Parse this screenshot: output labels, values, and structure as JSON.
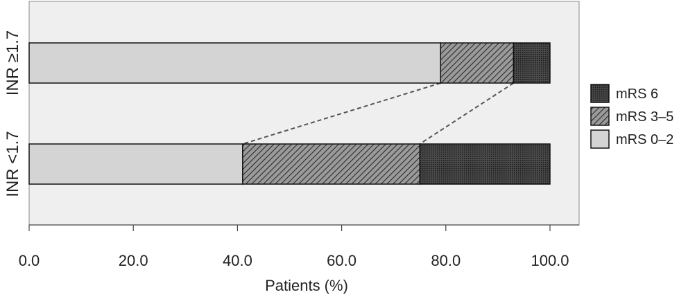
{
  "chart_data": {
    "type": "bar",
    "orientation": "horizontal",
    "stacked": true,
    "categories": [
      "INR ≥1.7",
      "INR <1.7"
    ],
    "series": [
      {
        "name": "mRS 0–2",
        "values": [
          79,
          41
        ],
        "color": "#d4d4d4",
        "pattern": "solid"
      },
      {
        "name": "mRS 3–5",
        "values": [
          14,
          34
        ],
        "color": "#8a8a8a",
        "pattern": "diagonal-hatch"
      },
      {
        "name": "mRS 6",
        "values": [
          7,
          25
        ],
        "color": "#3a3a3a",
        "pattern": "dense-dots"
      }
    ],
    "xlabel": "Patients (%)",
    "xlim": [
      0,
      100
    ],
    "xticks": [
      "0.0",
      "20.0",
      "40.0",
      "60.0",
      "80.0",
      "100.0"
    ],
    "legend": {
      "position": "right",
      "order": [
        "mRS 6",
        "mRS 3–5",
        "mRS 0–2"
      ]
    },
    "connectors": "dashed",
    "plot_background": "#efefef",
    "grid": false
  }
}
